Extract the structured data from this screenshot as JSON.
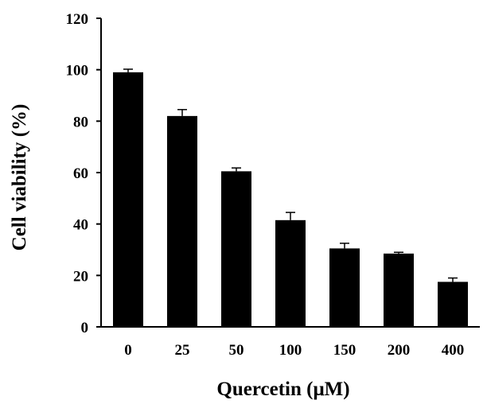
{
  "chart_data": {
    "type": "bar",
    "xlabel": "Quercetin (μM)",
    "ylabel": "Cell viability (%)",
    "categories": [
      "0",
      "25",
      "50",
      "100",
      "150",
      "200",
      "400"
    ],
    "values": [
      99,
      82,
      60.5,
      41.5,
      30.5,
      28.5,
      17.5
    ],
    "errors": [
      1.2,
      2.5,
      1.3,
      3.0,
      2.0,
      0.5,
      1.5
    ],
    "ylim": [
      0,
      120
    ],
    "yticks": [
      0,
      20,
      40,
      60,
      80,
      100,
      120
    ],
    "grid": false,
    "legend": "none",
    "bar_color": "#000000"
  }
}
